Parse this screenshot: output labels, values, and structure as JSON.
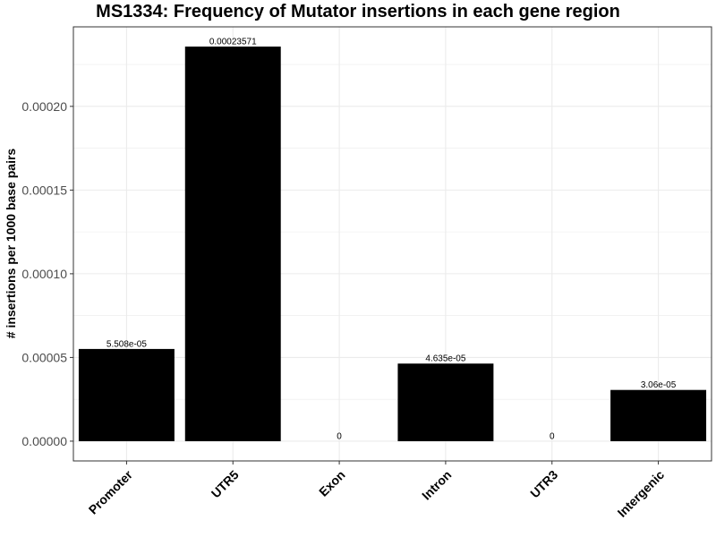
{
  "chart_data": {
    "type": "bar",
    "title": "MS1334: Frequency of Mutator insertions in each gene region",
    "xlabel": "",
    "ylabel": "# insertions per 1000 base pairs",
    "categories": [
      "Promoter",
      "UTR5",
      "Exon",
      "Intron",
      "UTR3",
      "Intergenic"
    ],
    "values": [
      5.508e-05,
      0.00023571,
      0,
      4.635e-05,
      0,
      3.06e-05
    ],
    "data_labels": [
      "5.508e-05",
      "0.00023571",
      "0",
      "4.635e-05",
      "0",
      "3.06e-05"
    ],
    "y_ticks": [
      0,
      5e-05,
      0.0001,
      0.00015,
      0.0002
    ],
    "y_tick_labels": [
      "0.00000",
      "0.00005",
      "0.00010",
      "0.00015",
      "0.00020"
    ],
    "ylim": [
      -1.18e-05,
      0.0002475
    ],
    "grid": true,
    "bar_color": "#000000",
    "grid_color": "#ebebeb",
    "panel_border_color": "#333333"
  }
}
